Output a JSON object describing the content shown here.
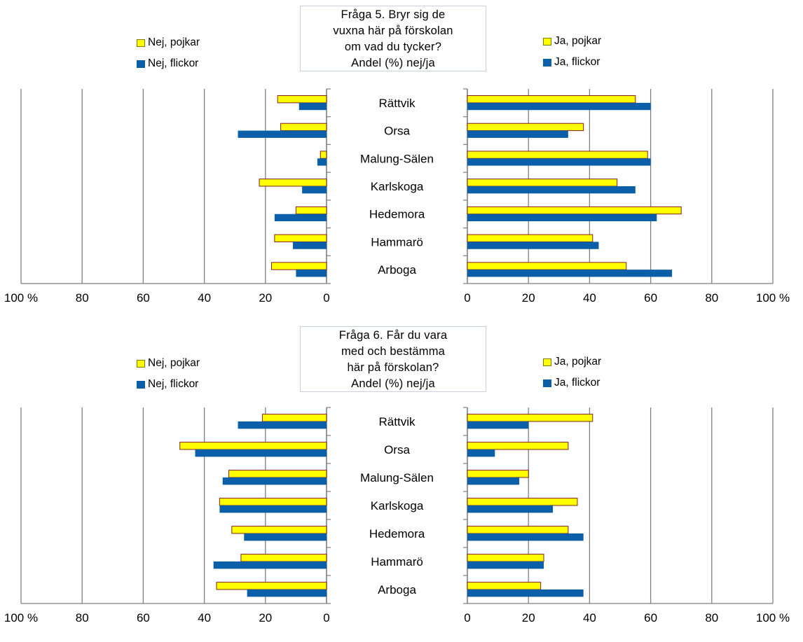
{
  "charts": [
    {
      "id": "q5",
      "title_lines": [
        "Fråga 5. Bryr sig de",
        "vuxna här på förskolan",
        "om vad du tycker?",
        "Andel (%) nej/ja"
      ],
      "legend": {
        "nej_pojkar": "Nej, pojkar",
        "nej_flickor": "Nej, flickor",
        "ja_pojkar": "Ja, pojkar",
        "ja_flickor": "Ja, flickor"
      },
      "axis_left_ticks": [
        "100 %",
        "80",
        "60",
        "40",
        "20",
        "0"
      ],
      "axis_right_ticks": [
        "0",
        "20",
        "40",
        "60",
        "80",
        "100 %"
      ]
    },
    {
      "id": "q6",
      "title_lines": [
        "Fråga 6. Får du vara",
        "med och bestämma",
        "här på förskolan?",
        "Andel (%) nej/ja"
      ],
      "legend": {
        "nej_pojkar": "Nej, pojkar",
        "nej_flickor": "Nej, flickor",
        "ja_pojkar": "Ja, pojkar",
        "ja_flickor": "Ja, flickor"
      },
      "axis_left_ticks": [
        "100 %",
        "80",
        "60",
        "40",
        "20",
        "0"
      ],
      "axis_right_ticks": [
        "0",
        "20",
        "40",
        "60",
        "80",
        "100 %"
      ]
    }
  ],
  "colors": {
    "pojkar": "#ffff00",
    "pojkar_border": "#8a1c1c",
    "flickor": "#0b5fa8",
    "gridline": "#7f7f7f"
  },
  "chart_data": [
    {
      "type": "bar",
      "title": "Fråga 5. Bryr sig de vuxna här på förskolan om vad du tycker? Andel (%) nej/ja",
      "categories": [
        "Rättvik",
        "Orsa",
        "Malung-Sälen",
        "Karlskoga",
        "Hedemora",
        "Hammarö",
        "Arboga"
      ],
      "series": [
        {
          "name": "Nej, pojkar",
          "values": [
            16,
            15,
            2,
            22,
            10,
            17,
            18
          ]
        },
        {
          "name": "Nej, flickor",
          "values": [
            9,
            29,
            3,
            8,
            17,
            11,
            10
          ]
        },
        {
          "name": "Ja, pojkar",
          "values": [
            55,
            38,
            59,
            49,
            70,
            41,
            52
          ]
        },
        {
          "name": "Ja, flickor",
          "values": [
            60,
            33,
            60,
            55,
            62,
            43,
            67
          ]
        }
      ],
      "xlim": [
        0,
        100
      ],
      "grid": true,
      "legend_position": "top"
    },
    {
      "type": "bar",
      "title": "Fråga 6. Får du vara med och bestämma här på förskolan? Andel (%) nej/ja",
      "categories": [
        "Rättvik",
        "Orsa",
        "Malung-Sälen",
        "Karlskoga",
        "Hedemora",
        "Hammarö",
        "Arboga"
      ],
      "series": [
        {
          "name": "Nej, pojkar",
          "values": [
            21,
            48,
            32,
            35,
            31,
            28,
            36
          ]
        },
        {
          "name": "Nej, flickor",
          "values": [
            29,
            43,
            34,
            35,
            27,
            37,
            26
          ]
        },
        {
          "name": "Ja, pojkar",
          "values": [
            41,
            33,
            20,
            36,
            33,
            25,
            24
          ]
        },
        {
          "name": "Ja, flickor",
          "values": [
            20,
            9,
            17,
            28,
            38,
            25,
            38
          ]
        }
      ],
      "xlim": [
        0,
        100
      ],
      "grid": true,
      "legend_position": "top"
    }
  ]
}
